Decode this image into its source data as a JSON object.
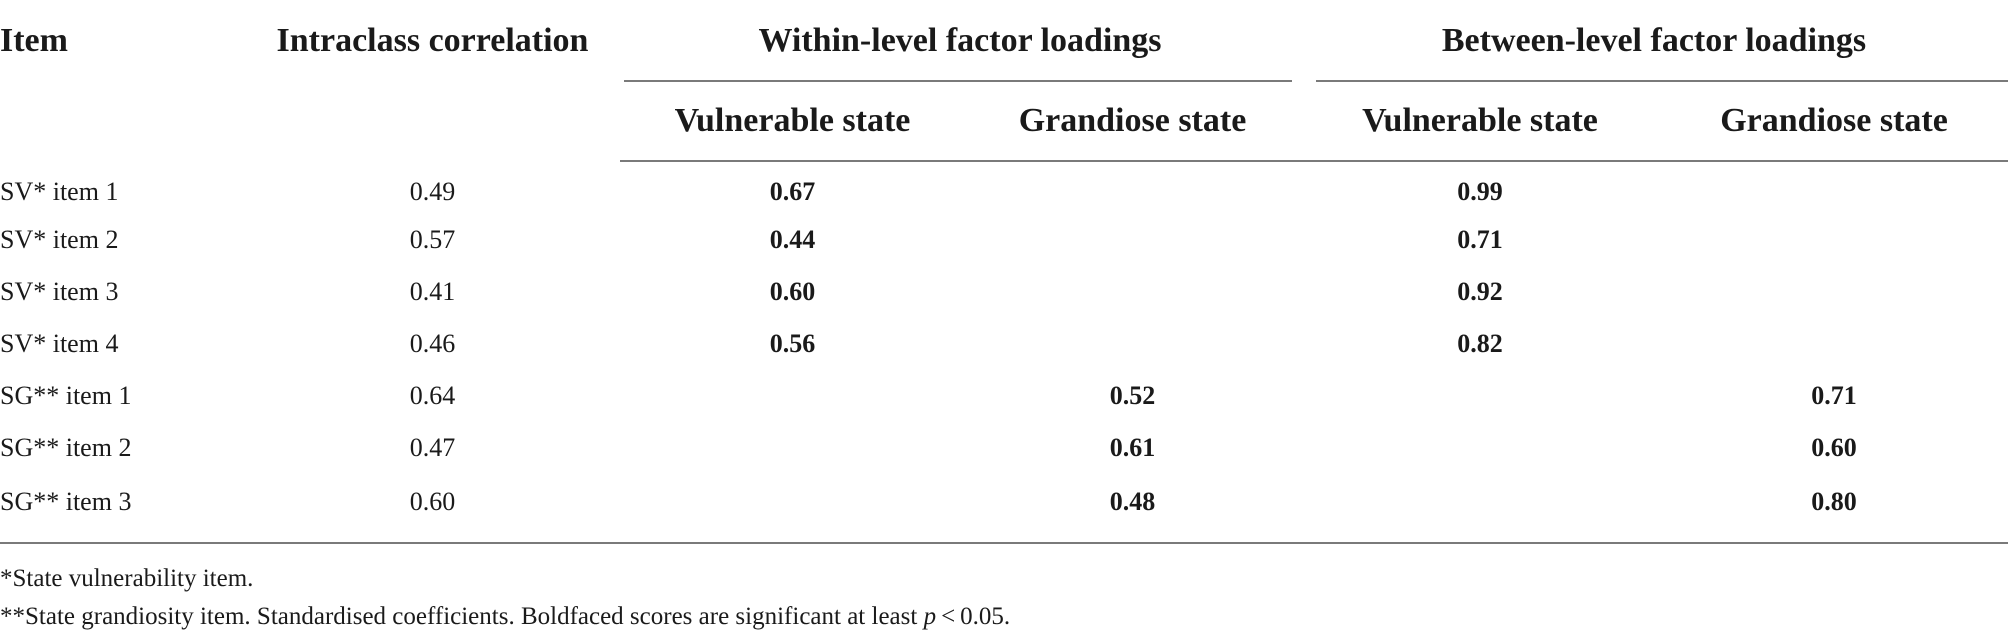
{
  "table": {
    "headers": {
      "item": "Item",
      "icc": "Intraclass correlation",
      "within": "Within-level factor loadings",
      "between": "Between-level factor loadings",
      "within_vulnerable": "Vulnerable state",
      "within_grandiose": "Grandiose state",
      "between_vulnerable": "Vulnerable state",
      "between_grandiose": "Grandiose state"
    },
    "rows": [
      {
        "item": "SV* item 1",
        "icc": "0.49",
        "wv": "0.67",
        "wg": "",
        "bv": "0.99",
        "bg": ""
      },
      {
        "item": "SV* item 2",
        "icc": "0.57",
        "wv": "0.44",
        "wg": "",
        "bv": "0.71",
        "bg": ""
      },
      {
        "item": "SV* item 3",
        "icc": "0.41",
        "wv": "0.60",
        "wg": "",
        "bv": "0.92",
        "bg": ""
      },
      {
        "item": "SV* item 4",
        "icc": "0.46",
        "wv": "0.56",
        "wg": "",
        "bv": "0.82",
        "bg": ""
      },
      {
        "item": "SG** item 1",
        "icc": "0.64",
        "wv": "",
        "wg": "0.52",
        "bv": "",
        "bg": "0.71"
      },
      {
        "item": "SG** item 2",
        "icc": "0.47",
        "wv": "",
        "wg": "0.61",
        "bv": "",
        "bg": "0.60"
      },
      {
        "item": "SG** item 3",
        "icc": "0.60",
        "wv": "",
        "wg": "0.48",
        "bv": "",
        "bg": "0.80"
      }
    ]
  },
  "notes": {
    "note1": "*State vulnerability item.",
    "note2_prefix": "**State grandiosity item. Standardised coefficients. Boldfaced scores are significant at least ",
    "note2_p": "p",
    "note2_suffix": " < 0.05."
  }
}
